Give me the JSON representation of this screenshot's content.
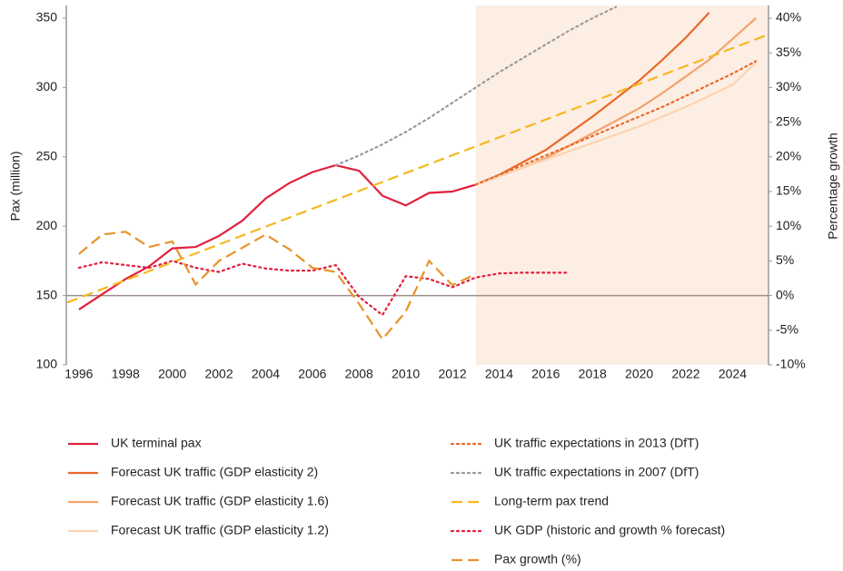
{
  "chart_data": {
    "type": "line",
    "ylabel": "Pax (million)",
    "y2label": "Percentage growth",
    "xlim": [
      1995.46,
      2025.54
    ],
    "xticks": [
      1996,
      1998,
      2000,
      2002,
      2004,
      2006,
      2008,
      2010,
      2012,
      2014,
      2016,
      2018,
      2020,
      2022,
      2024
    ],
    "ylim": [
      100,
      350
    ],
    "yticks": [
      100,
      150,
      200,
      250,
      300,
      350
    ],
    "y2lim": [
      -10,
      40
    ],
    "y2ticks": [
      {
        "value": -10,
        "label": "-10%"
      },
      {
        "value": -5,
        "label": "-5%"
      },
      {
        "value": 0,
        "label": "0%"
      },
      {
        "value": 5,
        "label": "5%"
      },
      {
        "value": 10,
        "label": "10%"
      },
      {
        "value": 15,
        "label": "15%"
      },
      {
        "value": 20,
        "label": "20%"
      },
      {
        "value": 25,
        "label": "25%"
      },
      {
        "value": 30,
        "label": "30%"
      },
      {
        "value": 35,
        "label": "35%"
      },
      {
        "value": 40,
        "label": "40%"
      }
    ],
    "y2_reference_line": 0,
    "highlight_x": [
      2013,
      2025.54
    ],
    "highlight_color": "#fdeee4",
    "series": [
      {
        "name": "UK terminal pax",
        "color": "#e0203c",
        "dash": "solid",
        "x": [
          1996,
          1997,
          1998,
          1999,
          2000,
          2001,
          2002,
          2003,
          2004,
          2005,
          2006,
          2007,
          2008,
          2009,
          2010,
          2011,
          2012,
          2013
        ],
        "values": [
          140,
          151,
          162,
          171,
          184,
          185,
          193,
          204,
          220,
          231,
          239,
          244,
          240,
          222,
          215,
          224,
          225,
          230
        ]
      },
      {
        "name": "Forecast UK traffic (GDP elasticity 2)",
        "color": "#e8692a",
        "dash": "solid",
        "x": [
          2013,
          2014,
          2015,
          2016,
          2017,
          2018,
          2019,
          2020,
          2021,
          2022,
          2023
        ],
        "values": [
          230,
          237,
          246,
          255,
          267,
          279,
          292,
          305,
          320,
          336,
          354
        ]
      },
      {
        "name": "Forecast UK traffic (GDP elasticity 1.6)",
        "color": "#f2a36d",
        "dash": "solid",
        "x": [
          2013,
          2014,
          2015,
          2016,
          2017,
          2018,
          2019,
          2020,
          2021,
          2022,
          2023,
          2024,
          2025
        ],
        "values": [
          230,
          236,
          242,
          249,
          258,
          267,
          276,
          285,
          296,
          308,
          320,
          335,
          350
        ]
      },
      {
        "name": "Forecast UK traffic (GDP elasticity 1.2)",
        "color": "#fbd4b0",
        "dash": "solid",
        "x": [
          2013,
          2014,
          2015,
          2016,
          2017,
          2018,
          2019,
          2020,
          2021,
          2022,
          2023,
          2024,
          2025
        ],
        "values": [
          230,
          236,
          242,
          248,
          254,
          260,
          266,
          272,
          279,
          286,
          294,
          302,
          318
        ]
      },
      {
        "name": "UK traffic expectations in 2013 (DfT)",
        "color": "#e8692a",
        "dash": "dotted",
        "x": [
          2013,
          2014,
          2015,
          2016,
          2017,
          2018,
          2019,
          2020,
          2021,
          2022,
          2023,
          2024,
          2025
        ],
        "values": [
          230,
          237,
          244,
          251,
          258,
          265,
          272,
          279,
          286,
          294,
          302,
          310,
          319
        ]
      },
      {
        "name": "UK traffic expectations in 2007 (DfT)",
        "color": "#9a9a9a",
        "dash": "dotted",
        "x": [
          2007,
          2008,
          2009,
          2010,
          2011,
          2012,
          2013,
          2014,
          2015,
          2016,
          2017,
          2018,
          2019
        ],
        "values": [
          244,
          251,
          259,
          268,
          278,
          289,
          300,
          311,
          321,
          331,
          341,
          350,
          358
        ]
      },
      {
        "name": "Long-term pax trend",
        "color": "#f5b820",
        "dash": "dashed",
        "x": [
          1995.5,
          2025.5
        ],
        "values": [
          145,
          338
        ]
      },
      {
        "name": "UK GDP (historic and growth % forecast)",
        "color": "#e0203c",
        "dash": "dotted",
        "axis": "y2",
        "x": [
          1996,
          1997,
          1998,
          1999,
          2000,
          2001,
          2002,
          2003,
          2004,
          2005,
          2006,
          2007,
          2008,
          2009,
          2010,
          2011,
          2012,
          2013,
          2014,
          2015,
          2016,
          2017
        ],
        "values": [
          4.0,
          4.8,
          4.4,
          4.0,
          5.0,
          4.0,
          3.4,
          4.6,
          3.9,
          3.6,
          3.6,
          4.4,
          -0.2,
          -2.8,
          2.8,
          2.4,
          1.2,
          2.6,
          3.2,
          3.3,
          3.3,
          3.3
        ]
      },
      {
        "name": "Pax growth (%)",
        "color": "#e8932a",
        "dash": "dashed",
        "axis": "y2",
        "x": [
          1996,
          1997,
          1998,
          1999,
          2000,
          2001,
          2002,
          2003,
          2004,
          2005,
          2006,
          2007,
          2008,
          2009,
          2010,
          2011,
          2012,
          2013
        ],
        "values": [
          6.0,
          8.8,
          9.2,
          7.0,
          7.8,
          1.6,
          5.0,
          6.9,
          8.8,
          6.7,
          4.0,
          3.4,
          -1.2,
          -6.3,
          -2.3,
          5.0,
          1.5,
          3.1
        ]
      }
    ]
  }
}
